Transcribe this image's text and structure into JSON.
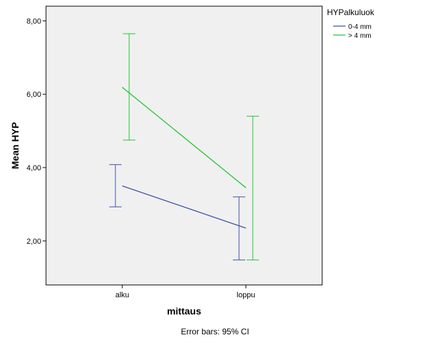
{
  "chart_data": {
    "type": "line",
    "xlabel": "mittaus",
    "ylabel": "Mean HYP",
    "categories": [
      "alku",
      "loppu"
    ],
    "ylim": [
      0.8,
      8.4
    ],
    "yticks": [
      2,
      4,
      6,
      8
    ],
    "ytick_labels": [
      "2,00",
      "4,00",
      "6,00",
      "8,00"
    ],
    "grid": false,
    "legend_title": "HYPalkuluok",
    "legend_position": "top-right outside",
    "series": [
      {
        "name": "0-4 mm",
        "color": "#3c52a8",
        "values": [
          3.5,
          2.35
        ],
        "ci_lower": [
          2.93,
          1.48
        ],
        "ci_upper": [
          4.08,
          3.2
        ]
      },
      {
        "name": "> 4 mm",
        "color": "#22c530",
        "values": [
          6.19,
          3.45
        ],
        "ci_lower": [
          4.75,
          1.48
        ],
        "ci_upper": [
          7.65,
          5.4
        ]
      }
    ],
    "footnote": "Error bars: 95% CI"
  }
}
